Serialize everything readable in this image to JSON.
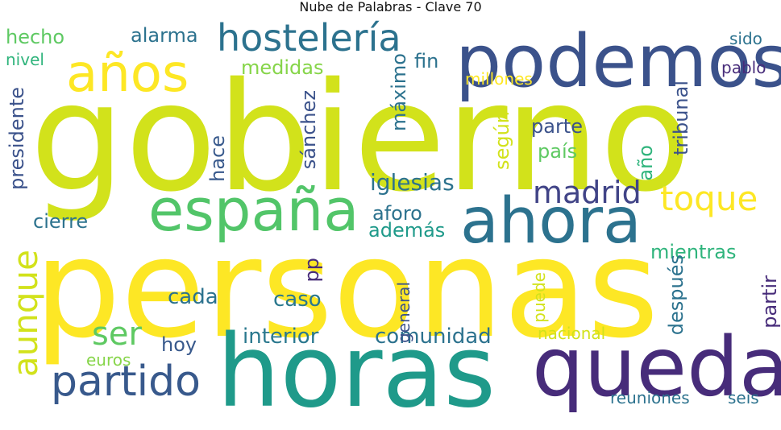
{
  "title": "Nube de Palabras - Clave 70",
  "words": {
    "gobierno": "gobierno",
    "personas": "personas",
    "horas": "horas",
    "podemos": "podemos",
    "queda": "queda",
    "ahora": "ahora",
    "espana": "españa",
    "hosteleria": "hostelería",
    "anos": "años",
    "aunque": "aunque",
    "partido": "partido",
    "toque": "toque",
    "madrid": "madrid",
    "ser": "ser",
    "iglesias": "iglesias",
    "interior": "interior",
    "comunidad": "comunidad",
    "mientras": "mientras",
    "alarma": "alarma",
    "hecho": "hecho",
    "medidas": "medidas",
    "presidente": "presidente",
    "cierre": "cierre",
    "aforo": "aforo",
    "ademas": "además",
    "cada": "cada",
    "caso": "caso",
    "hoy": "hoy",
    "euros": "euros",
    "nivel": "nivel",
    "fin": "fin",
    "sido": "sido",
    "pablo": "pablo",
    "millones": "millones",
    "parte": "parte",
    "pais": "país",
    "reuniones": "reuniones",
    "seis": "seis",
    "nacional": "nacional",
    "maximo": "máximo",
    "sanchez": "sánchez",
    "hace": "hace",
    "segun": "según",
    "ano": "año",
    "tribunal": "tribunal",
    "despues": "después",
    "partir": "partir",
    "pp": "pp",
    "general": "general",
    "puede": "puede"
  }
}
